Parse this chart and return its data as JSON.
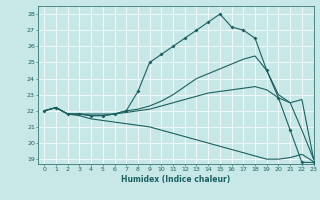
{
  "title": "",
  "xlabel": "Humidex (Indice chaleur)",
  "ylabel": "",
  "bg_color": "#c8e8e8",
  "line_color": "#1a6060",
  "grid_color": "#b0d4d4",
  "xlim": [
    -0.5,
    23
  ],
  "ylim": [
    18.7,
    28.5
  ],
  "yticks": [
    19,
    20,
    21,
    22,
    23,
    24,
    25,
    26,
    27,
    28
  ],
  "xticks": [
    0,
    1,
    2,
    3,
    4,
    5,
    6,
    7,
    8,
    9,
    10,
    11,
    12,
    13,
    14,
    15,
    16,
    17,
    18,
    19,
    20,
    21,
    22,
    23
  ],
  "series": [
    {
      "x": [
        0,
        1,
        2,
        3,
        4,
        5,
        6,
        7,
        8,
        9,
        10,
        11,
        12,
        13,
        14,
        15,
        16,
        17,
        18,
        19,
        20,
        21,
        22,
        23
      ],
      "y": [
        22,
        22.2,
        21.8,
        21.8,
        21.7,
        21.7,
        21.8,
        22.0,
        23.2,
        25.0,
        25.5,
        26.0,
        26.5,
        27.0,
        27.5,
        28.0,
        27.2,
        27.0,
        26.5,
        24.5,
        22.8,
        20.8,
        18.8,
        18.8
      ],
      "marker": true
    },
    {
      "x": [
        0,
        1,
        2,
        3,
        4,
        5,
        6,
        7,
        8,
        9,
        10,
        11,
        12,
        13,
        14,
        15,
        16,
        17,
        18,
        19,
        20,
        21,
        22,
        23
      ],
      "y": [
        22,
        22.2,
        21.8,
        21.8,
        21.8,
        21.8,
        21.8,
        22.0,
        22.1,
        22.3,
        22.6,
        23.0,
        23.5,
        24.0,
        24.3,
        24.6,
        24.9,
        25.2,
        25.4,
        24.5,
        23.0,
        22.5,
        20.8,
        19.0
      ],
      "marker": false
    },
    {
      "x": [
        0,
        1,
        2,
        3,
        4,
        5,
        6,
        7,
        8,
        9,
        10,
        11,
        12,
        13,
        14,
        15,
        16,
        17,
        18,
        19,
        20,
        21,
        22,
        23
      ],
      "y": [
        22,
        22.2,
        21.8,
        21.8,
        21.7,
        21.7,
        21.8,
        21.9,
        22.0,
        22.1,
        22.3,
        22.5,
        22.7,
        22.9,
        23.1,
        23.2,
        23.3,
        23.4,
        23.5,
        23.3,
        22.8,
        22.5,
        22.7,
        19.0
      ],
      "marker": false
    },
    {
      "x": [
        0,
        1,
        2,
        3,
        4,
        5,
        6,
        7,
        8,
        9,
        10,
        11,
        12,
        13,
        14,
        15,
        16,
        17,
        18,
        19,
        20,
        21,
        22,
        23
      ],
      "y": [
        22,
        22.2,
        21.8,
        21.7,
        21.5,
        21.4,
        21.3,
        21.2,
        21.1,
        21.0,
        20.8,
        20.6,
        20.4,
        20.2,
        20.0,
        19.8,
        19.6,
        19.4,
        19.2,
        19.0,
        19.0,
        19.1,
        19.3,
        18.85
      ],
      "marker": false
    }
  ]
}
